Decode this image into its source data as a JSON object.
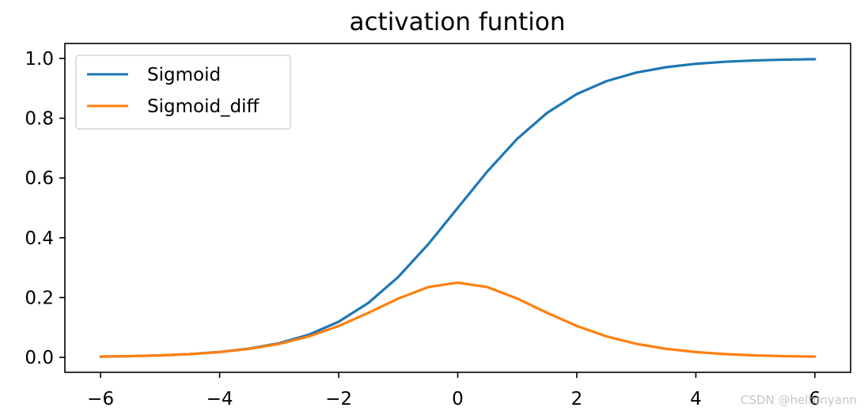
{
  "chart_data": {
    "type": "line",
    "title": "activation funtion",
    "xlabel": "",
    "ylabel": "",
    "xlim": [
      -6.6,
      6.6
    ],
    "ylim": [
      -0.05,
      1.05
    ],
    "xticks": [
      -6,
      -4,
      -2,
      0,
      2,
      4,
      6
    ],
    "xtick_labels": [
      "−6",
      "−4",
      "−2",
      "0",
      "2",
      "4",
      "6"
    ],
    "yticks": [
      0.0,
      0.2,
      0.4,
      0.6,
      0.8,
      1.0
    ],
    "ytick_labels": [
      "0.0",
      "0.2",
      "0.4",
      "0.6",
      "0.8",
      "1.0"
    ],
    "grid": false,
    "legend_position": "upper-left",
    "x": [
      -6,
      -5.5,
      -5,
      -4.5,
      -4,
      -3.5,
      -3,
      -2.5,
      -2,
      -1.5,
      -1,
      -0.5,
      0,
      0.5,
      1,
      1.5,
      2,
      2.5,
      3,
      3.5,
      4,
      4.5,
      5,
      5.5,
      6
    ],
    "series": [
      {
        "name": "Sigmoid",
        "color": "#1f77b4",
        "values": [
          0.0025,
          0.0041,
          0.0067,
          0.011,
          0.018,
          0.0293,
          0.0474,
          0.0759,
          0.1192,
          0.1824,
          0.2689,
          0.3775,
          0.5,
          0.6225,
          0.7311,
          0.8176,
          0.8808,
          0.9241,
          0.9526,
          0.9707,
          0.982,
          0.989,
          0.9933,
          0.9959,
          0.9975
        ]
      },
      {
        "name": "Sigmoid_diff",
        "color": "#ff7f0e",
        "values": [
          0.0025,
          0.0041,
          0.0066,
          0.0109,
          0.0177,
          0.0285,
          0.0452,
          0.0701,
          0.105,
          0.1491,
          0.1966,
          0.235,
          0.25,
          0.235,
          0.1966,
          0.1491,
          0.105,
          0.0701,
          0.0452,
          0.0285,
          0.0177,
          0.0109,
          0.0066,
          0.0041,
          0.0025
        ]
      }
    ]
  },
  "watermark": "CSDN @heltonyann"
}
